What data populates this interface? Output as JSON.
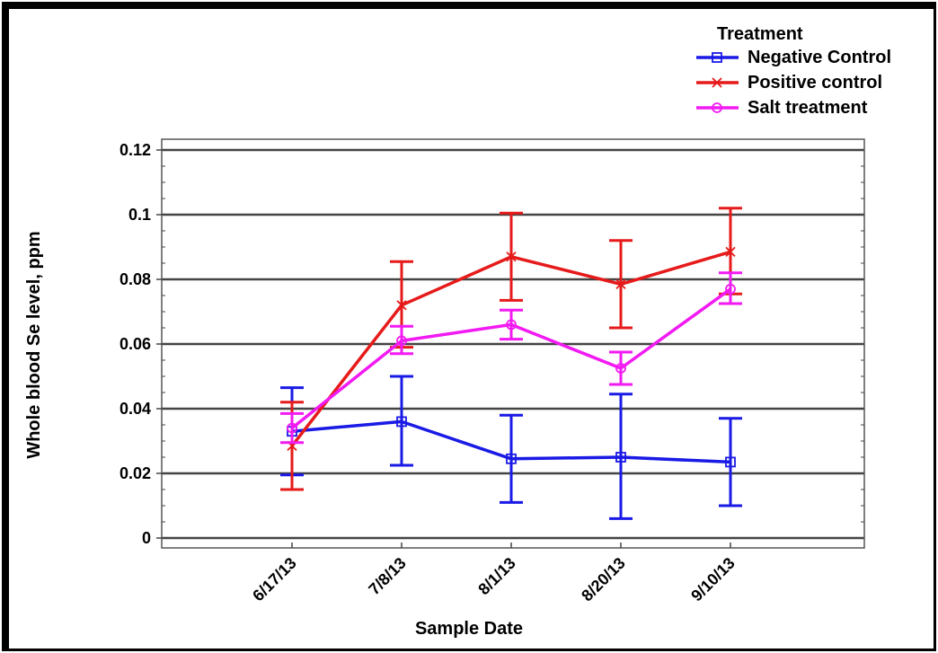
{
  "chart_data": {
    "type": "line",
    "title": "",
    "xlabel": "Sample Date",
    "ylabel": "Whole blood Se level, ppm",
    "categories": [
      "6/17/13",
      "7/8/13",
      "8/1/13",
      "8/20/13",
      "9/10/13"
    ],
    "y_ticks": [
      "0",
      "0.02",
      "0.04",
      "0.06",
      "0.08",
      "0.1",
      "0.12"
    ],
    "ylim": [
      0,
      0.12
    ],
    "grid": "horizontal",
    "legend": {
      "title": "Treatment",
      "placement": "top-right"
    },
    "series": [
      {
        "name": "Negative Control",
        "color": "#1a1ae6",
        "marker": "square",
        "values": [
          0.033,
          0.036,
          0.0245,
          0.025,
          0.0235
        ],
        "err_low": [
          0.0195,
          0.0225,
          0.011,
          0.006,
          0.01
        ],
        "err_high": [
          0.0465,
          0.05,
          0.038,
          0.0445,
          0.037
        ]
      },
      {
        "name": "Positive control",
        "color": "#e61a1a",
        "marker": "x",
        "values": [
          0.0285,
          0.072,
          0.087,
          0.0785,
          0.0885
        ],
        "err_low": [
          0.015,
          0.059,
          0.0735,
          0.065,
          0.0755
        ],
        "err_high": [
          0.042,
          0.0855,
          0.1005,
          0.092,
          0.102
        ]
      },
      {
        "name": "Salt treatment",
        "color": "#f21af2",
        "marker": "circle",
        "values": [
          0.034,
          0.061,
          0.066,
          0.0525,
          0.077
        ],
        "err_low": [
          0.0295,
          0.057,
          0.0615,
          0.0475,
          0.0725
        ],
        "err_high": [
          0.0385,
          0.0655,
          0.0705,
          0.0575,
          0.082
        ]
      }
    ]
  }
}
